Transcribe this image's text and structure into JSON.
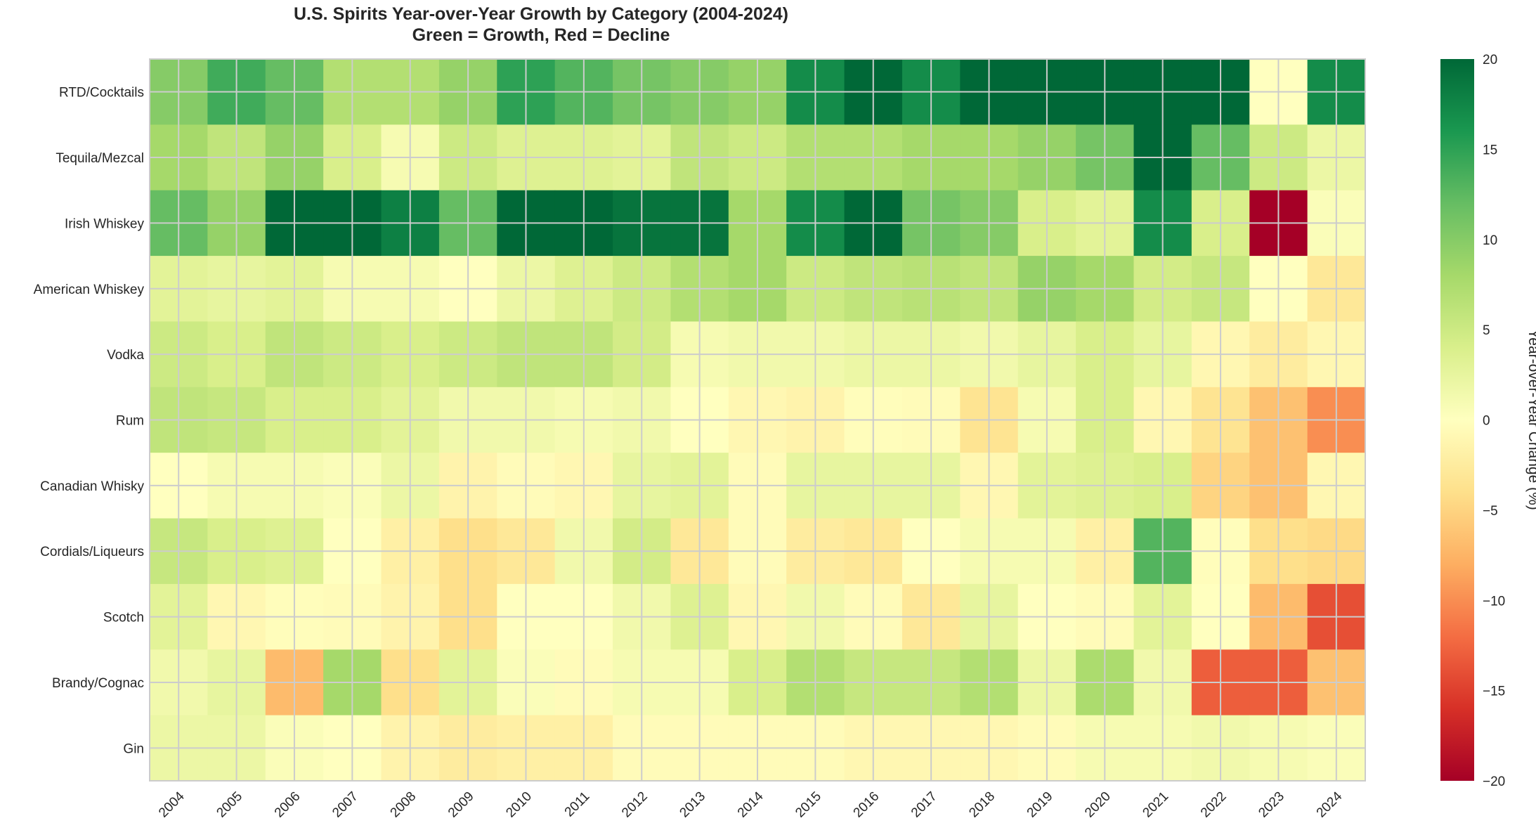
{
  "chart_data": {
    "type": "heatmap",
    "title": "U.S. Spirits Year-over-Year Growth by Category (2004-2024)",
    "subtitle": "Green = Growth, Red = Decline",
    "colormap": "RdYlGn",
    "vmin": -20,
    "vmax": 20,
    "colorbar_label": "Year-over-Year Change (%)",
    "colorbar_ticks": [
      20,
      15,
      10,
      5,
      0,
      -5,
      -10,
      -15,
      -20
    ],
    "grid": true,
    "x": [
      "2004",
      "2005",
      "2006",
      "2007",
      "2008",
      "2009",
      "2010",
      "2011",
      "2012",
      "2013",
      "2014",
      "2015",
      "2016",
      "2017",
      "2018",
      "2019",
      "2020",
      "2021",
      "2022",
      "2023",
      "2024"
    ],
    "y": [
      "RTD/Cocktails",
      "Tequila/Mezcal",
      "Irish Whiskey",
      "American Whiskey",
      "Vodka",
      "Rum",
      "Canadian Whisky",
      "Cordials/Liqueurs",
      "Scotch",
      "Brandy/Cognac",
      "Gin"
    ],
    "values": [
      [
        10,
        14,
        12,
        7,
        7,
        9,
        15,
        13,
        11,
        10,
        9,
        17,
        22,
        17,
        25,
        28,
        30,
        25,
        20,
        0,
        17
      ],
      [
        8,
        6,
        9,
        4,
        1,
        5,
        3.5,
        3.5,
        3,
        6,
        5,
        7,
        7,
        8,
        8,
        9,
        11,
        25,
        12,
        5,
        2
      ],
      [
        12,
        9,
        20,
        20,
        18,
        12,
        20,
        21,
        19,
        19,
        8,
        17,
        20,
        11,
        10,
        4,
        3,
        17,
        4,
        -20,
        0.5
      ],
      [
        3,
        2.5,
        3,
        1,
        1,
        0,
        2,
        3.5,
        5,
        7,
        8,
        5,
        6,
        6.5,
        6,
        9,
        8,
        4.5,
        5.5,
        0,
        -3
      ],
      [
        5,
        4,
        6,
        5,
        4,
        5,
        6,
        6,
        4.5,
        1,
        1.5,
        1.5,
        2,
        2,
        1.5,
        2.5,
        4,
        2.5,
        -1,
        -2.5,
        -1
      ],
      [
        6,
        5.5,
        4,
        4,
        3,
        1.5,
        1.5,
        1,
        1.5,
        0,
        -1,
        -1.5,
        -0.3,
        -0.5,
        -3.5,
        1,
        4,
        -1,
        -3.5,
        -6.5,
        -10
      ],
      [
        0,
        1,
        1,
        0.5,
        2,
        -1.5,
        -0.5,
        -1,
        2.5,
        3,
        -0.5,
        2.5,
        2.5,
        2.5,
        -1,
        3,
        3.5,
        4,
        -5,
        -6.5,
        -1
      ],
      [
        5.5,
        4,
        3.5,
        0,
        -2,
        -4,
        -3,
        1.5,
        4.5,
        -3,
        -0.5,
        -2.5,
        -3,
        0,
        1,
        1,
        -2,
        13,
        -0.3,
        -4,
        -4.5
      ],
      [
        3,
        -1,
        -0.3,
        -0.5,
        -1.5,
        -4,
        0,
        0,
        1.5,
        3.5,
        -1,
        1.5,
        -0.5,
        -3,
        2.5,
        0,
        -0.5,
        3,
        0,
        -7,
        -14
      ],
      [
        1.5,
        2.5,
        -7,
        8,
        -4,
        3,
        0.5,
        -0.5,
        1,
        1,
        4,
        7,
        5.5,
        5.5,
        7,
        2,
        7.5,
        1.5,
        -13,
        -13,
        -6.5
      ],
      [
        2,
        2,
        0.5,
        0,
        -1.5,
        -2.5,
        -2,
        -2,
        -0.5,
        -0.5,
        -0.5,
        -0.5,
        -1,
        -1,
        -1,
        -0.5,
        1,
        1,
        1.5,
        1,
        0.5
      ]
    ]
  }
}
